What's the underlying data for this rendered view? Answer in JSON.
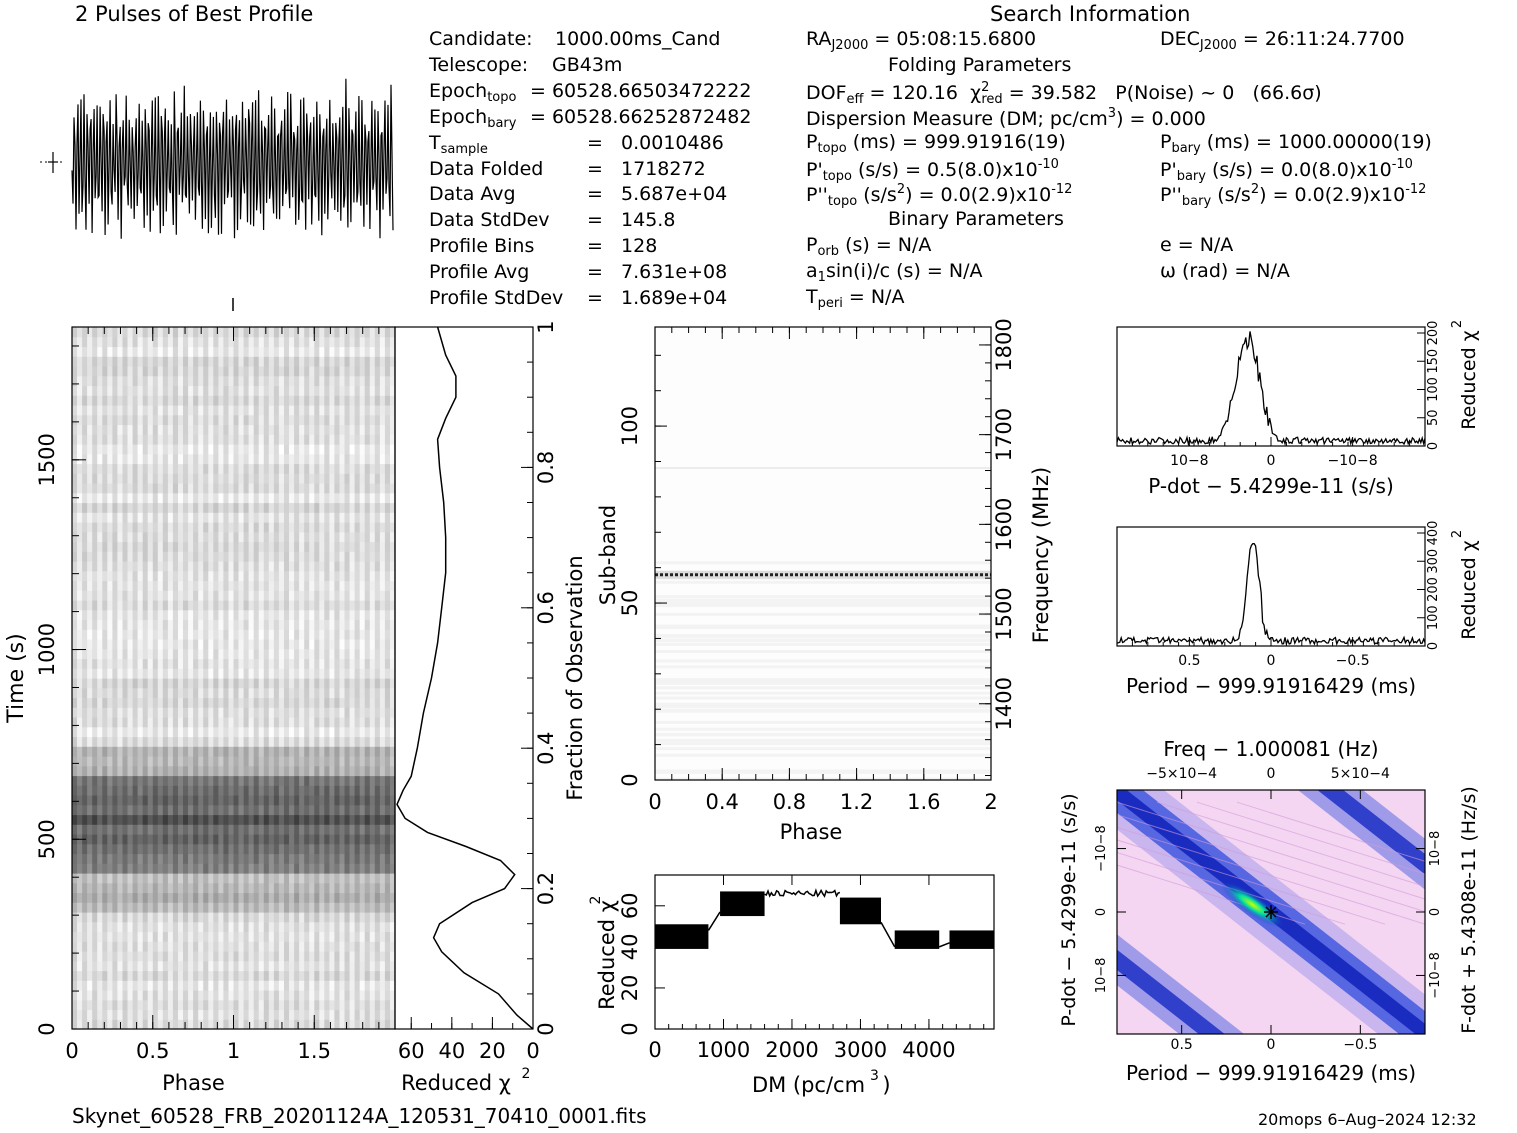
{
  "header": {
    "profile_title": "2 Pulses of Best Profile",
    "search_title": "Search Information",
    "folding_title": "Folding Parameters",
    "binary_title": "Binary Parameters"
  },
  "info_left": [
    {
      "label": "Candidate:",
      "value": "1000.00ms_Cand"
    },
    {
      "label": "Telescope:",
      "value": "GB43m"
    },
    {
      "label": "Epoch",
      "sub": "topo",
      "value": "= 60528.66503472222"
    },
    {
      "label": "Epoch",
      "sub": "bary",
      "value": "= 60528.66252872482"
    },
    {
      "label": "T",
      "sub": "sample",
      "value": "=   0.0010486"
    },
    {
      "label": "Data Folded",
      "value": "=   1718272"
    },
    {
      "label": "Data Avg",
      "value": "=   5.687e+04"
    },
    {
      "label": "Data StdDev",
      "value": "=   145.8"
    },
    {
      "label": "Profile Bins",
      "value": "=   128"
    },
    {
      "label": "Profile Avg",
      "value": "=   7.631e+08"
    },
    {
      "label": "Profile StdDev",
      "value": "=   1.689e+04"
    }
  ],
  "info_mid": {
    "ra": {
      "label": "RA",
      "sub": "J2000",
      "value": "= 05:08:15.6800"
    },
    "dof": {
      "label": "DOF",
      "sub": "eff",
      "value": "= 120.16"
    },
    "chi": {
      "label": "χ",
      "sup": "2",
      "sub": "red",
      "value": "= 39.582"
    },
    "pnoise": "P(Noise) ~ 0",
    "sigma": "(66.6σ)",
    "dm_line": "Dispersion Measure (DM; pc/cm",
    "dm_sup": "3",
    "dm_value": ") = 0.000",
    "ptopo": {
      "label": "P",
      "sub": "topo",
      "value": "(ms) =   999.91916(19)"
    },
    "pdtopo": {
      "label": "P'",
      "sub": "topo",
      "value": "(s/s) =   0.5(8.0)x10",
      "exp": "-10"
    },
    "pddtopo": {
      "label": "P''",
      "sub": "topo",
      "value": "(s/s",
      "sup": "2",
      "value2": ") = 0.0(2.9)x10",
      "exp": "-12"
    },
    "porb": {
      "label": "P",
      "sub": "orb",
      "value": "(s) = N/A"
    },
    "a1sini": {
      "label": "a",
      "sub": "1",
      "value": "sin(i)/c (s) = N/A"
    },
    "tperi": {
      "label": "T",
      "sub": "peri",
      "value": "= N/A"
    }
  },
  "info_right": {
    "dec": {
      "label": "DEC",
      "sub": "J2000",
      "value": "= 26:11:24.7700"
    },
    "pbary": {
      "label": "P",
      "sub": "bary",
      "value": "(ms) =   1000.00000(19)"
    },
    "pdbary": {
      "label": "P'",
      "sub": "bary",
      "value": "(s/s) = 0.0(8.0)x10",
      "exp": "-10"
    },
    "pddbary": {
      "label": "P''",
      "sub": "bary",
      "value": "(s/s",
      "sup": "2",
      "value2": ") = 0.0(2.9)x10",
      "exp": "-12"
    },
    "ecc": "e = N/A",
    "omega": "ω (rad) = N/A"
  },
  "footer": {
    "filename": "Skynet_60528_FRB_20201124A_120531_70410_0001.fits",
    "stamp": "20mops   6–Aug–2024 12:32"
  },
  "chart_data": [
    {
      "id": "profile",
      "type": "line",
      "title": "2 Pulses of Best Profile",
      "xlim": [
        0,
        2
      ],
      "note": "two periods of a noisy pulse profile, rapid oscillation"
    },
    {
      "id": "time-phase",
      "type": "heatmap",
      "xlabel": "Phase",
      "ylabel": "Time (s)",
      "x_ticks": [
        "0",
        "0.5",
        "1",
        "1.5"
      ],
      "y_ticks": [
        "0",
        "500",
        "1000",
        "1500"
      ],
      "ylim": [
        0,
        1850
      ],
      "dark_band_time_range_s": [
        400,
        680
      ]
    },
    {
      "id": "time-chi2",
      "type": "line",
      "xlabel": "Reduced χ2",
      "ylabel": "Fraction of Observation",
      "x_ticks": [
        "60",
        "40",
        "20",
        "0"
      ],
      "y_ticks": [
        "0",
        "0.2",
        "0.4",
        "0.6",
        "0.8",
        "1"
      ],
      "points": [
        [
          0,
          0
        ],
        [
          0.02,
          8
        ],
        [
          0.05,
          17
        ],
        [
          0.08,
          34
        ],
        [
          0.11,
          45
        ],
        [
          0.13,
          49
        ],
        [
          0.15,
          46
        ],
        [
          0.18,
          30
        ],
        [
          0.2,
          14
        ],
        [
          0.22,
          9
        ],
        [
          0.24,
          16
        ],
        [
          0.26,
          33
        ],
        [
          0.28,
          52
        ],
        [
          0.3,
          63
        ],
        [
          0.32,
          67
        ],
        [
          0.34,
          64
        ],
        [
          0.36,
          60
        ],
        [
          0.4,
          57
        ],
        [
          0.45,
          54
        ],
        [
          0.5,
          50
        ],
        [
          0.55,
          47
        ],
        [
          0.6,
          45
        ],
        [
          0.65,
          43
        ],
        [
          0.7,
          43
        ],
        [
          0.75,
          44
        ],
        [
          0.8,
          46
        ],
        [
          0.84,
          47
        ],
        [
          0.87,
          43
        ],
        [
          0.9,
          38
        ],
        [
          0.93,
          38
        ],
        [
          0.96,
          43
        ],
        [
          1.0,
          47
        ]
      ]
    },
    {
      "id": "subband-phase",
      "type": "heatmap",
      "xlabel": "Phase",
      "ylabel": "Sub-band",
      "y2label": "Frequency (MHz)",
      "x_ticks": [
        "0",
        "0.4",
        "0.8",
        "1.2",
        "1.6",
        "2"
      ],
      "y_ticks": [
        "0",
        "50",
        "100"
      ],
      "y2_ticks": [
        "1400",
        "1500",
        "1600",
        "1700",
        "1800"
      ],
      "highlight_subband": 58
    },
    {
      "id": "dm-chi2",
      "type": "line",
      "xlabel": "DM (pc/cm3)",
      "ylabel": "Reduced χ2",
      "x_ticks": [
        "0",
        "1000",
        "2000",
        "3000",
        "4000"
      ],
      "y_ticks": [
        "0",
        "20",
        "40",
        "60"
      ],
      "xlim": [
        0,
        4950
      ],
      "ylim": [
        0,
        75
      ],
      "segments": [
        {
          "x0": 0,
          "x1": 780,
          "low": 39,
          "high": 51
        },
        {
          "x0": 950,
          "x1": 1600,
          "low": 55,
          "high": 67
        },
        {
          "x0": 1600,
          "x1": 2700,
          "line": 66
        },
        {
          "x0": 2700,
          "x1": 3300,
          "low": 51,
          "high": 64
        },
        {
          "x0": 3500,
          "x1": 4150,
          "low": 39,
          "high": 48
        },
        {
          "x0": 4300,
          "x1": 4950,
          "low": 39,
          "high": 48
        }
      ]
    },
    {
      "id": "pdot-chi2",
      "type": "line",
      "xlabel": "P-dot − 5.4299e-11 (s/s)",
      "ylabel": "Reduced χ2",
      "x_ticks": [
        "10−8",
        "0",
        "−10−8"
      ],
      "y_ticks": [
        "0",
        "50",
        "100",
        "150",
        "200"
      ],
      "peak_x_fraction": 0.42,
      "peak_value": 200
    },
    {
      "id": "period-chi2",
      "type": "line",
      "xlabel": "Period − 999.91916429 (ms)",
      "ylabel": "Reduced χ2",
      "x_ticks": [
        "0.5",
        "0",
        "−0.5"
      ],
      "y_ticks": [
        "0",
        "100",
        "200",
        "300",
        "400"
      ],
      "peak_x_fraction": 0.44,
      "peak_value": 400
    },
    {
      "id": "period-pdot",
      "type": "heatmap",
      "title": "Freq − 1.000081 (Hz)",
      "xlabel": "Period − 999.91916429 (ms)",
      "ylabel": "P-dot − 5.4299e-11 (s/s)",
      "y2label": "F-dot + 5.4308e-11 (Hz/s)",
      "top_ticks": [
        "−5×10−4",
        "0",
        "5×10−4"
      ],
      "x_ticks": [
        "0.5",
        "0",
        "−0.5"
      ],
      "y_ticks": [
        "10−8",
        "0",
        "−10−8"
      ],
      "y2_ticks": [
        "−10−8",
        "0",
        "10−8"
      ]
    }
  ]
}
